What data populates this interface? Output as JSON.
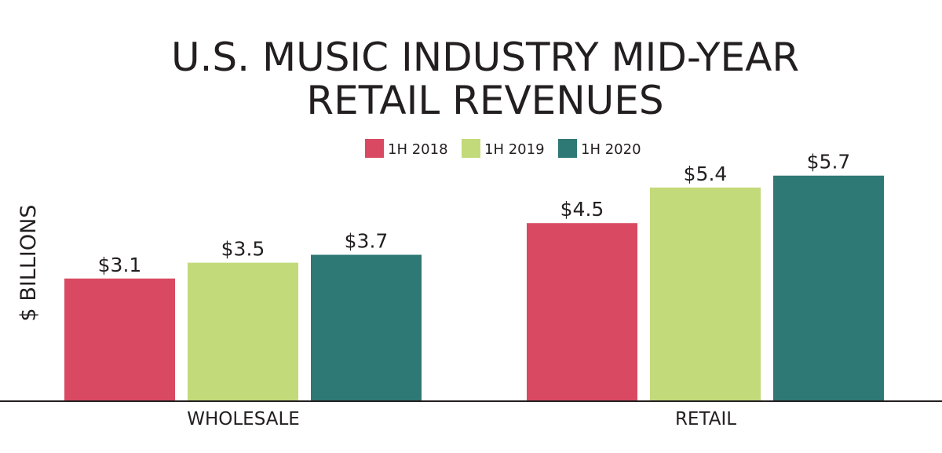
{
  "chart_data": {
    "type": "bar",
    "title": "U.S. MUSIC INDUSTRY MID-YEAR RETAIL REVENUES",
    "title_lines": [
      "U.S. MUSIC INDUSTRY MID-YEAR",
      "RETAIL REVENUES"
    ],
    "ylabel": "$ BILLIONS",
    "xlabel": "",
    "categories": [
      "WHOLESALE",
      "RETAIL"
    ],
    "series": [
      {
        "name": "1H 2018",
        "color": "#d94a62",
        "values": [
          3.1,
          4.5
        ],
        "labels": [
          "$3.1",
          "$4.5"
        ]
      },
      {
        "name": "1H 2019",
        "color": "#c3da7a",
        "values": [
          3.5,
          5.4
        ],
        "labels": [
          "$3.5",
          "$5.4"
        ]
      },
      {
        "name": "1H 2020",
        "color": "#2e7876",
        "values": [
          3.7,
          5.7
        ],
        "labels": [
          "$3.7",
          "$5.7"
        ]
      }
    ],
    "ylim": [
      0,
      6
    ],
    "grid": false,
    "legend_position": "top-center"
  }
}
